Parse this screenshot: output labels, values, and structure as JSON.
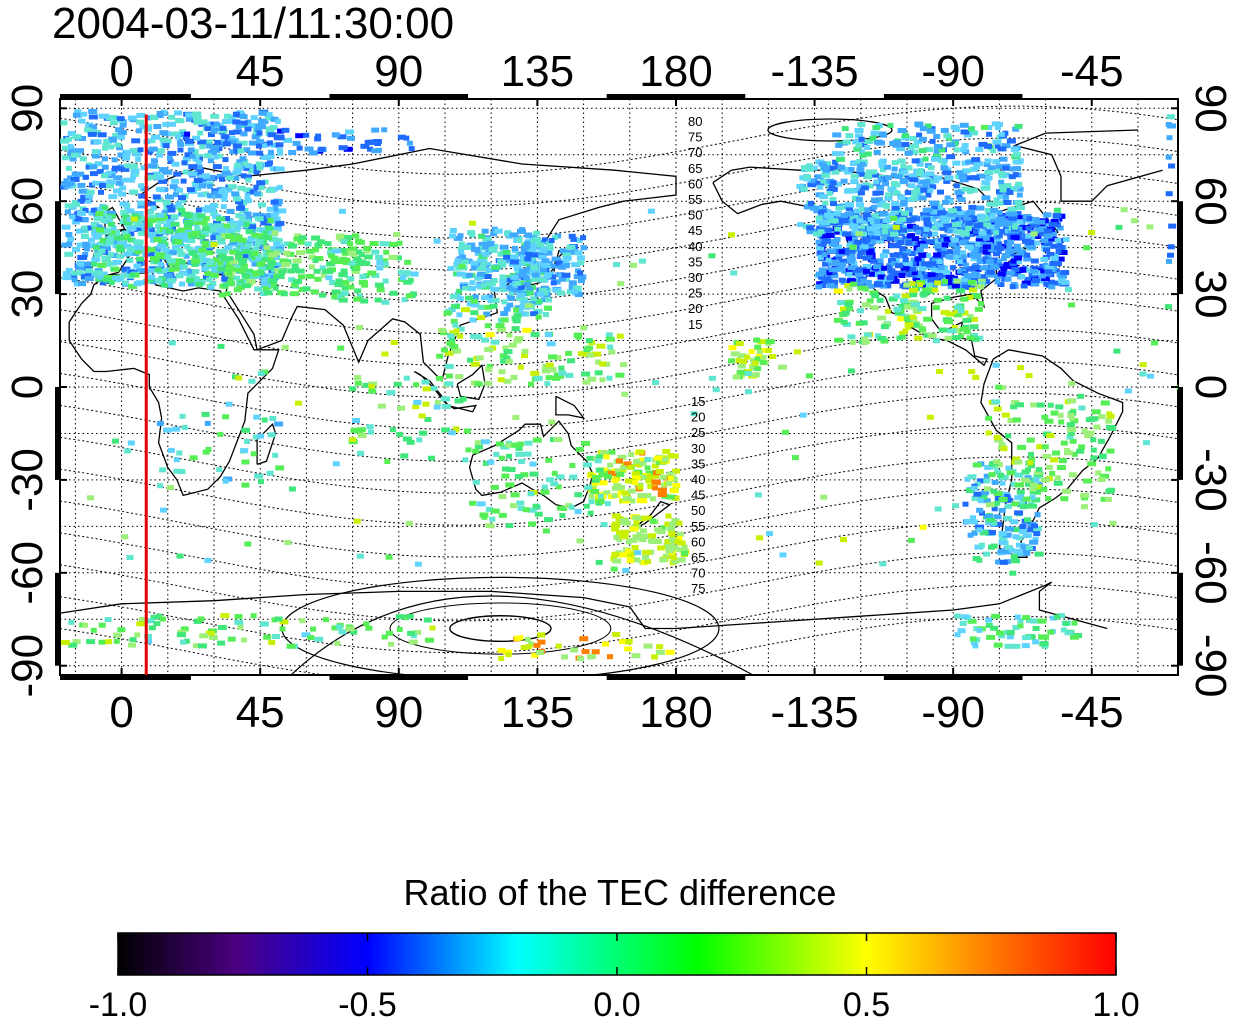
{
  "title": "2004-03-11/11:30:00",
  "map": {
    "lon_ticks": [
      "0",
      "45",
      "90",
      "135",
      "180",
      "-135",
      "-90",
      "-45"
    ],
    "lon_tick_values": [
      0,
      45,
      90,
      135,
      180,
      225,
      270,
      315
    ],
    "lat_ticks": [
      "-90",
      "-60",
      "-30",
      "0",
      "30",
      "60",
      "90"
    ],
    "lat_tick_values": [
      -90,
      -60,
      -30,
      0,
      30,
      60,
      90
    ],
    "lon_range": [
      -20,
      343
    ],
    "lat_range": [
      -93,
      93
    ],
    "grid": true,
    "terminator_longitude": 8,
    "terminator_color": "#e00000",
    "contour_labels_north": [
      "80",
      "75",
      "70",
      "65",
      "60",
      "55",
      "50",
      "45",
      "40",
      "35",
      "30",
      "25",
      "20",
      "15"
    ],
    "contour_labels_south": [
      "15",
      "20",
      "25",
      "30",
      "35",
      "40",
      "45",
      "50",
      "55",
      "60",
      "65",
      "70",
      "75"
    ]
  },
  "colorbar": {
    "title": "Ratio of the TEC difference",
    "tick_labels": [
      "-1.0",
      "-0.5",
      "0.0",
      "0.5",
      "1.0"
    ],
    "tick_values": [
      -1.0,
      -0.5,
      0.0,
      0.5,
      1.0
    ],
    "range": [
      -1.0,
      1.0
    ],
    "colors": [
      "#000000",
      "#4b0082",
      "#0000ff",
      "#00ffff",
      "#00ff00",
      "#ffff00",
      "#ff0000"
    ]
  }
}
